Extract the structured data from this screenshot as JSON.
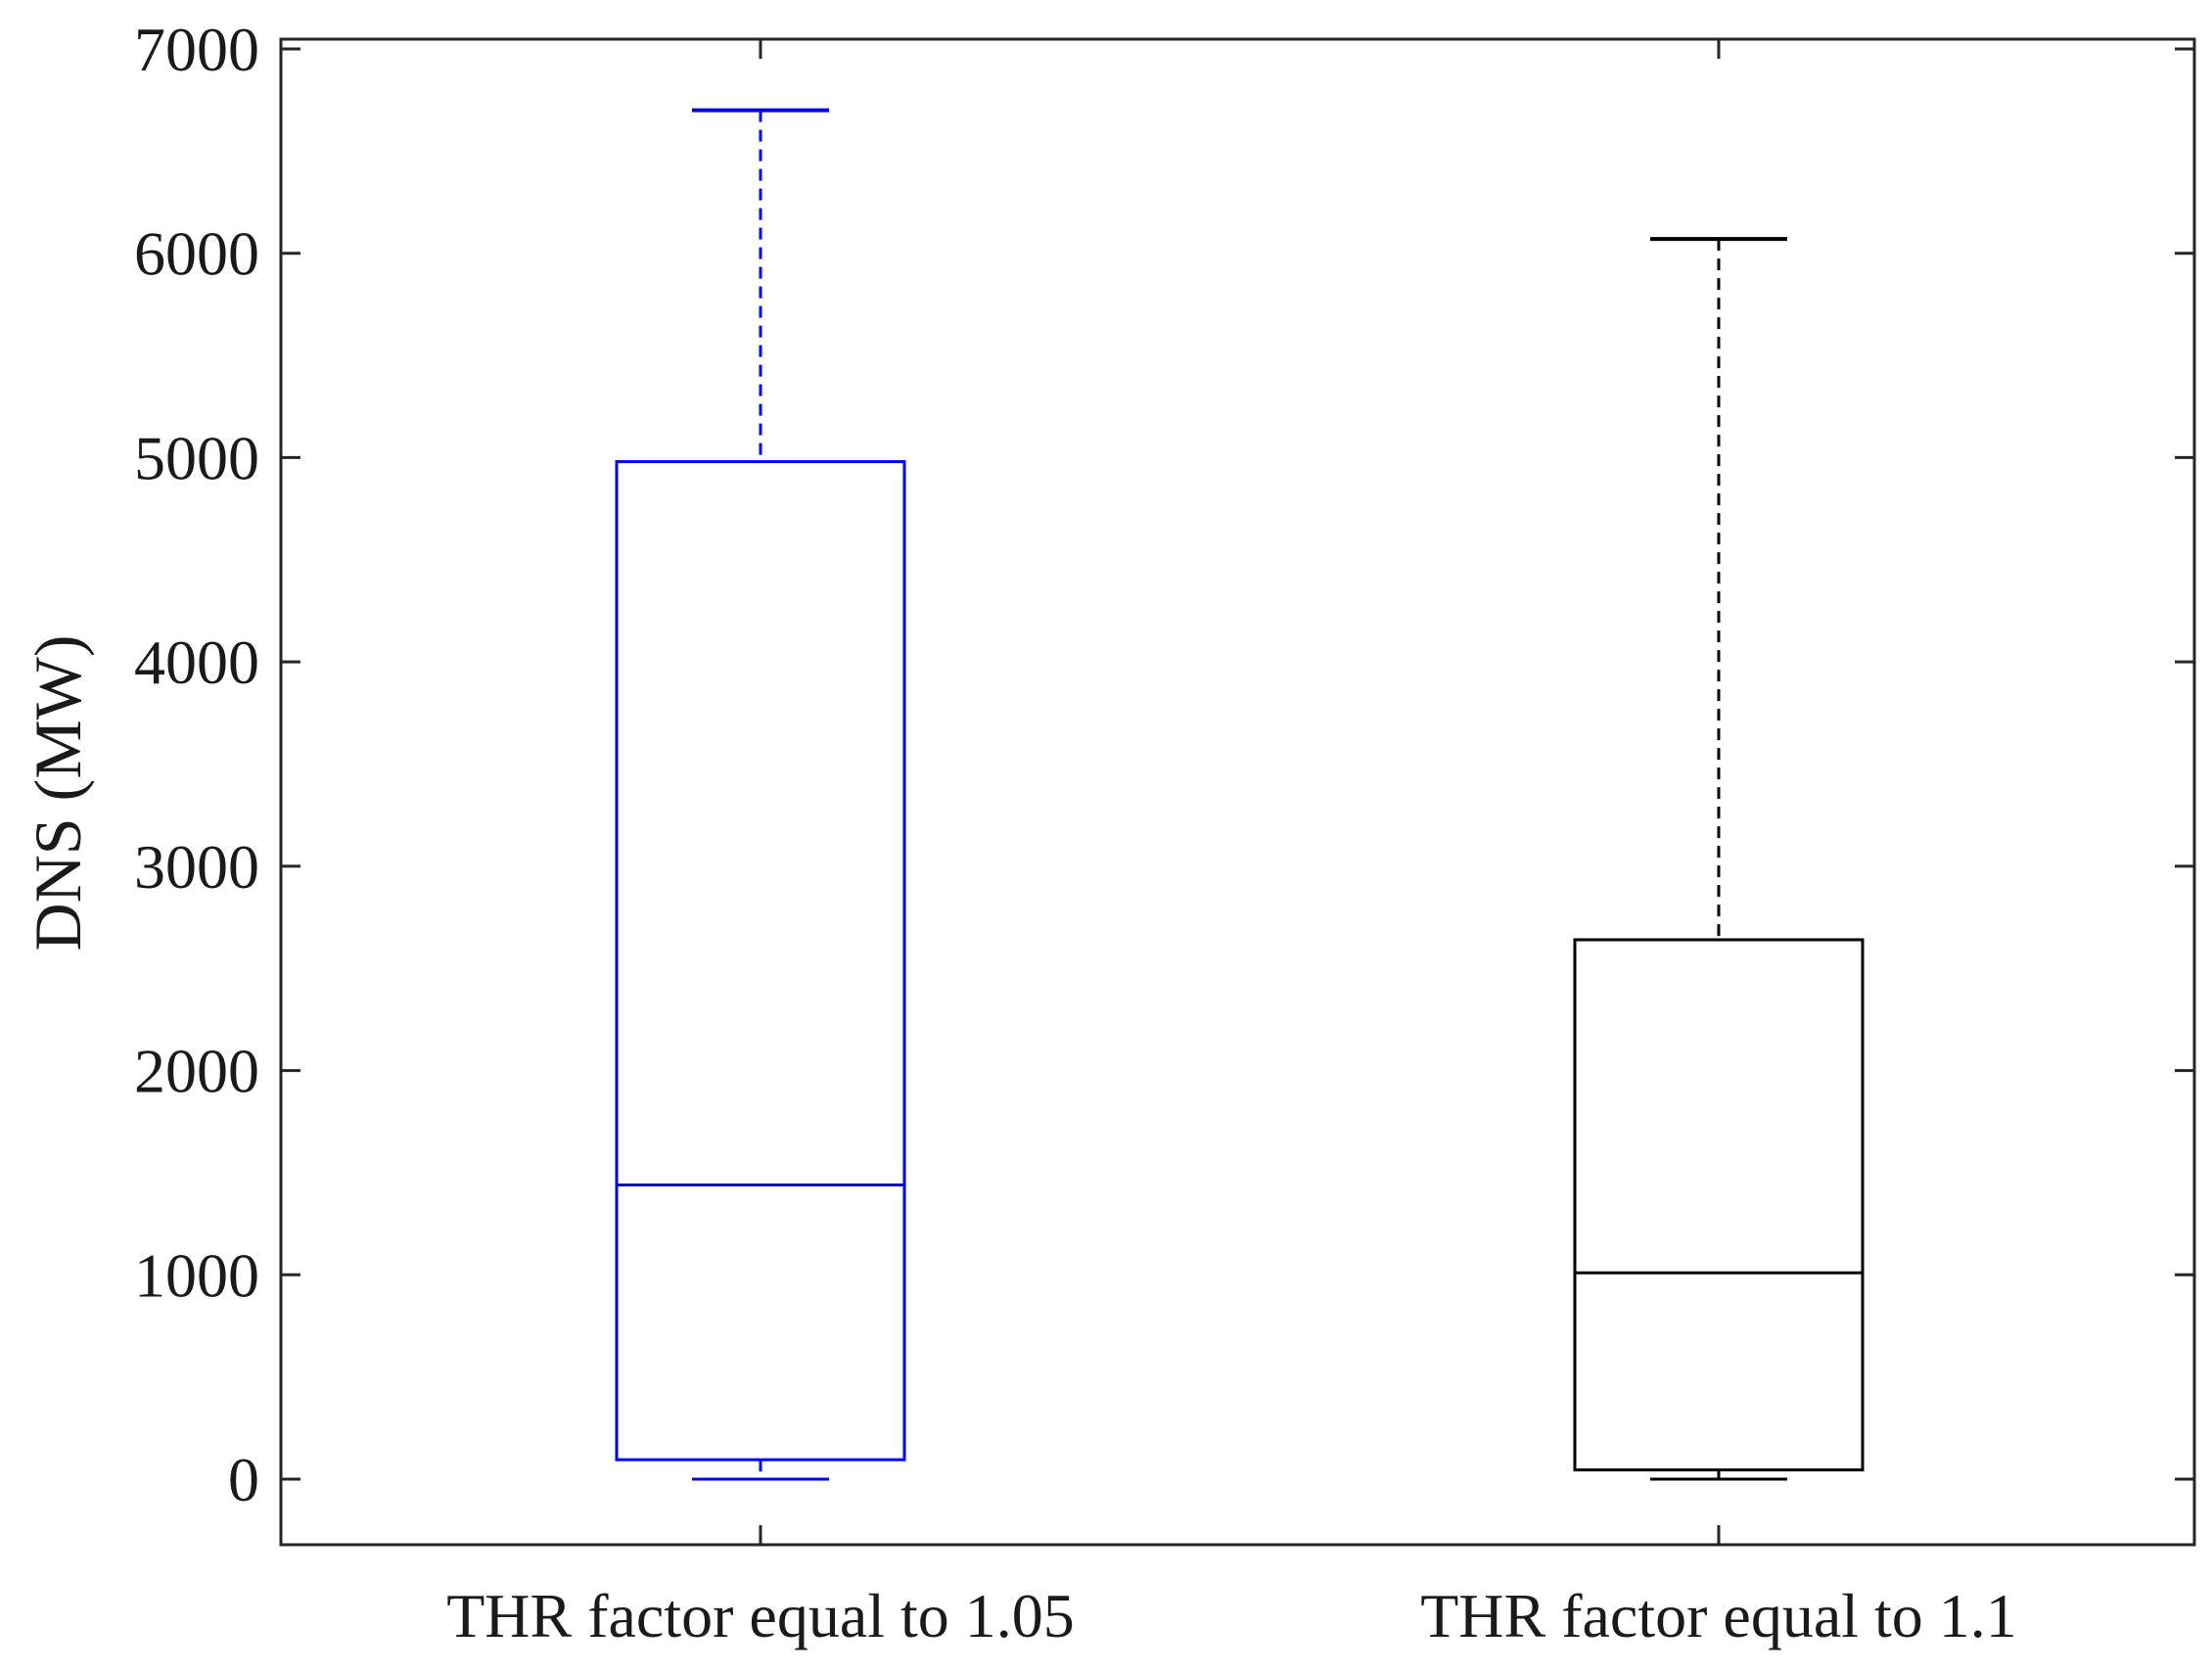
{
  "chart_data": {
    "type": "box",
    "title": "",
    "xlabel": "",
    "ylabel": "DNS (MW)",
    "ylim": [
      -320,
      7050
    ],
    "yticks": [
      0,
      1000,
      2000,
      3000,
      4000,
      5000,
      6000,
      7000
    ],
    "ytick_labels": [
      "0",
      "1000",
      "2000",
      "3000",
      "4000",
      "5000",
      "6000",
      "7000"
    ],
    "grid": false,
    "legend": "none",
    "categories": [
      "THR factor equal to 1.05",
      "THR factor equal to 1.1"
    ],
    "boxes": [
      {
        "category": "THR factor equal to 1.05",
        "min": 0,
        "q1": 95,
        "median": 1440,
        "q3": 4980,
        "max": 6700,
        "color": "#0000ff"
      },
      {
        "category": "THR factor equal to 1.1",
        "min": 0,
        "q1": 45,
        "median": 1010,
        "q3": 2640,
        "max": 6070,
        "color": "#000000"
      }
    ]
  }
}
